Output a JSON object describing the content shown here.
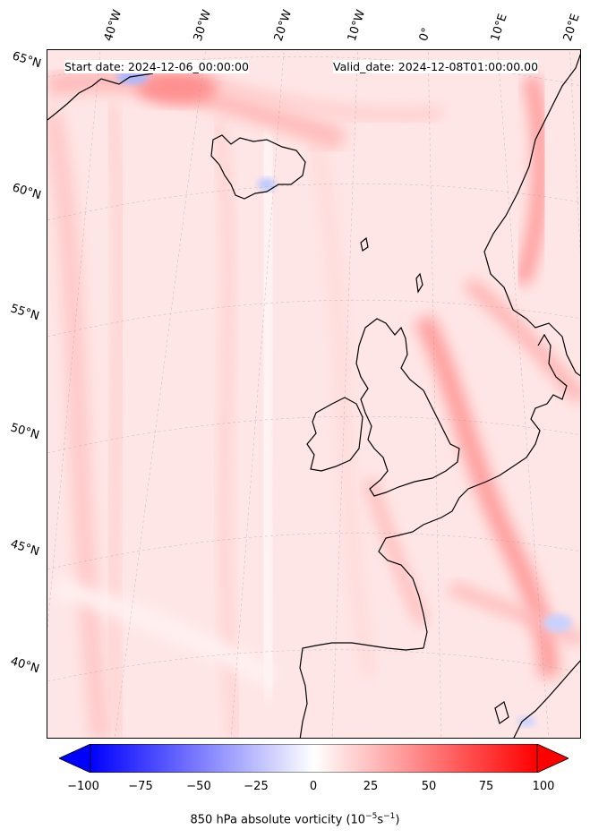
{
  "map": {
    "lon_labels": [
      "40°W",
      "30°W",
      "20°W",
      "10°W",
      "0°",
      "10°E",
      "20°E"
    ],
    "lat_labels": [
      "65°N",
      "60°N",
      "55°N",
      "50°N",
      "45°N",
      "40°N"
    ],
    "start_date": "Start date: 2024-12-06_00:00:00",
    "valid_date": "Valid_date: 2024-12-08T01:00:00.00",
    "field": "850 hPa absolute vorticity",
    "colormap": "bwr",
    "colors": {
      "negative": "#0000ff",
      "zero": "#ffffff",
      "positive": "#ff0000",
      "coastline": "#000000"
    }
  },
  "colorbar": {
    "ticks": [
      "−100",
      "−75",
      "−50",
      "−25",
      "0",
      "25",
      "50",
      "75",
      "100"
    ],
    "range": [
      -100,
      100
    ],
    "label_prefix": "850 hPa absolute vorticity (10",
    "label_exp1": "−5",
    "label_mid": "s",
    "label_exp2": "−1",
    "label_suffix": ")"
  }
}
